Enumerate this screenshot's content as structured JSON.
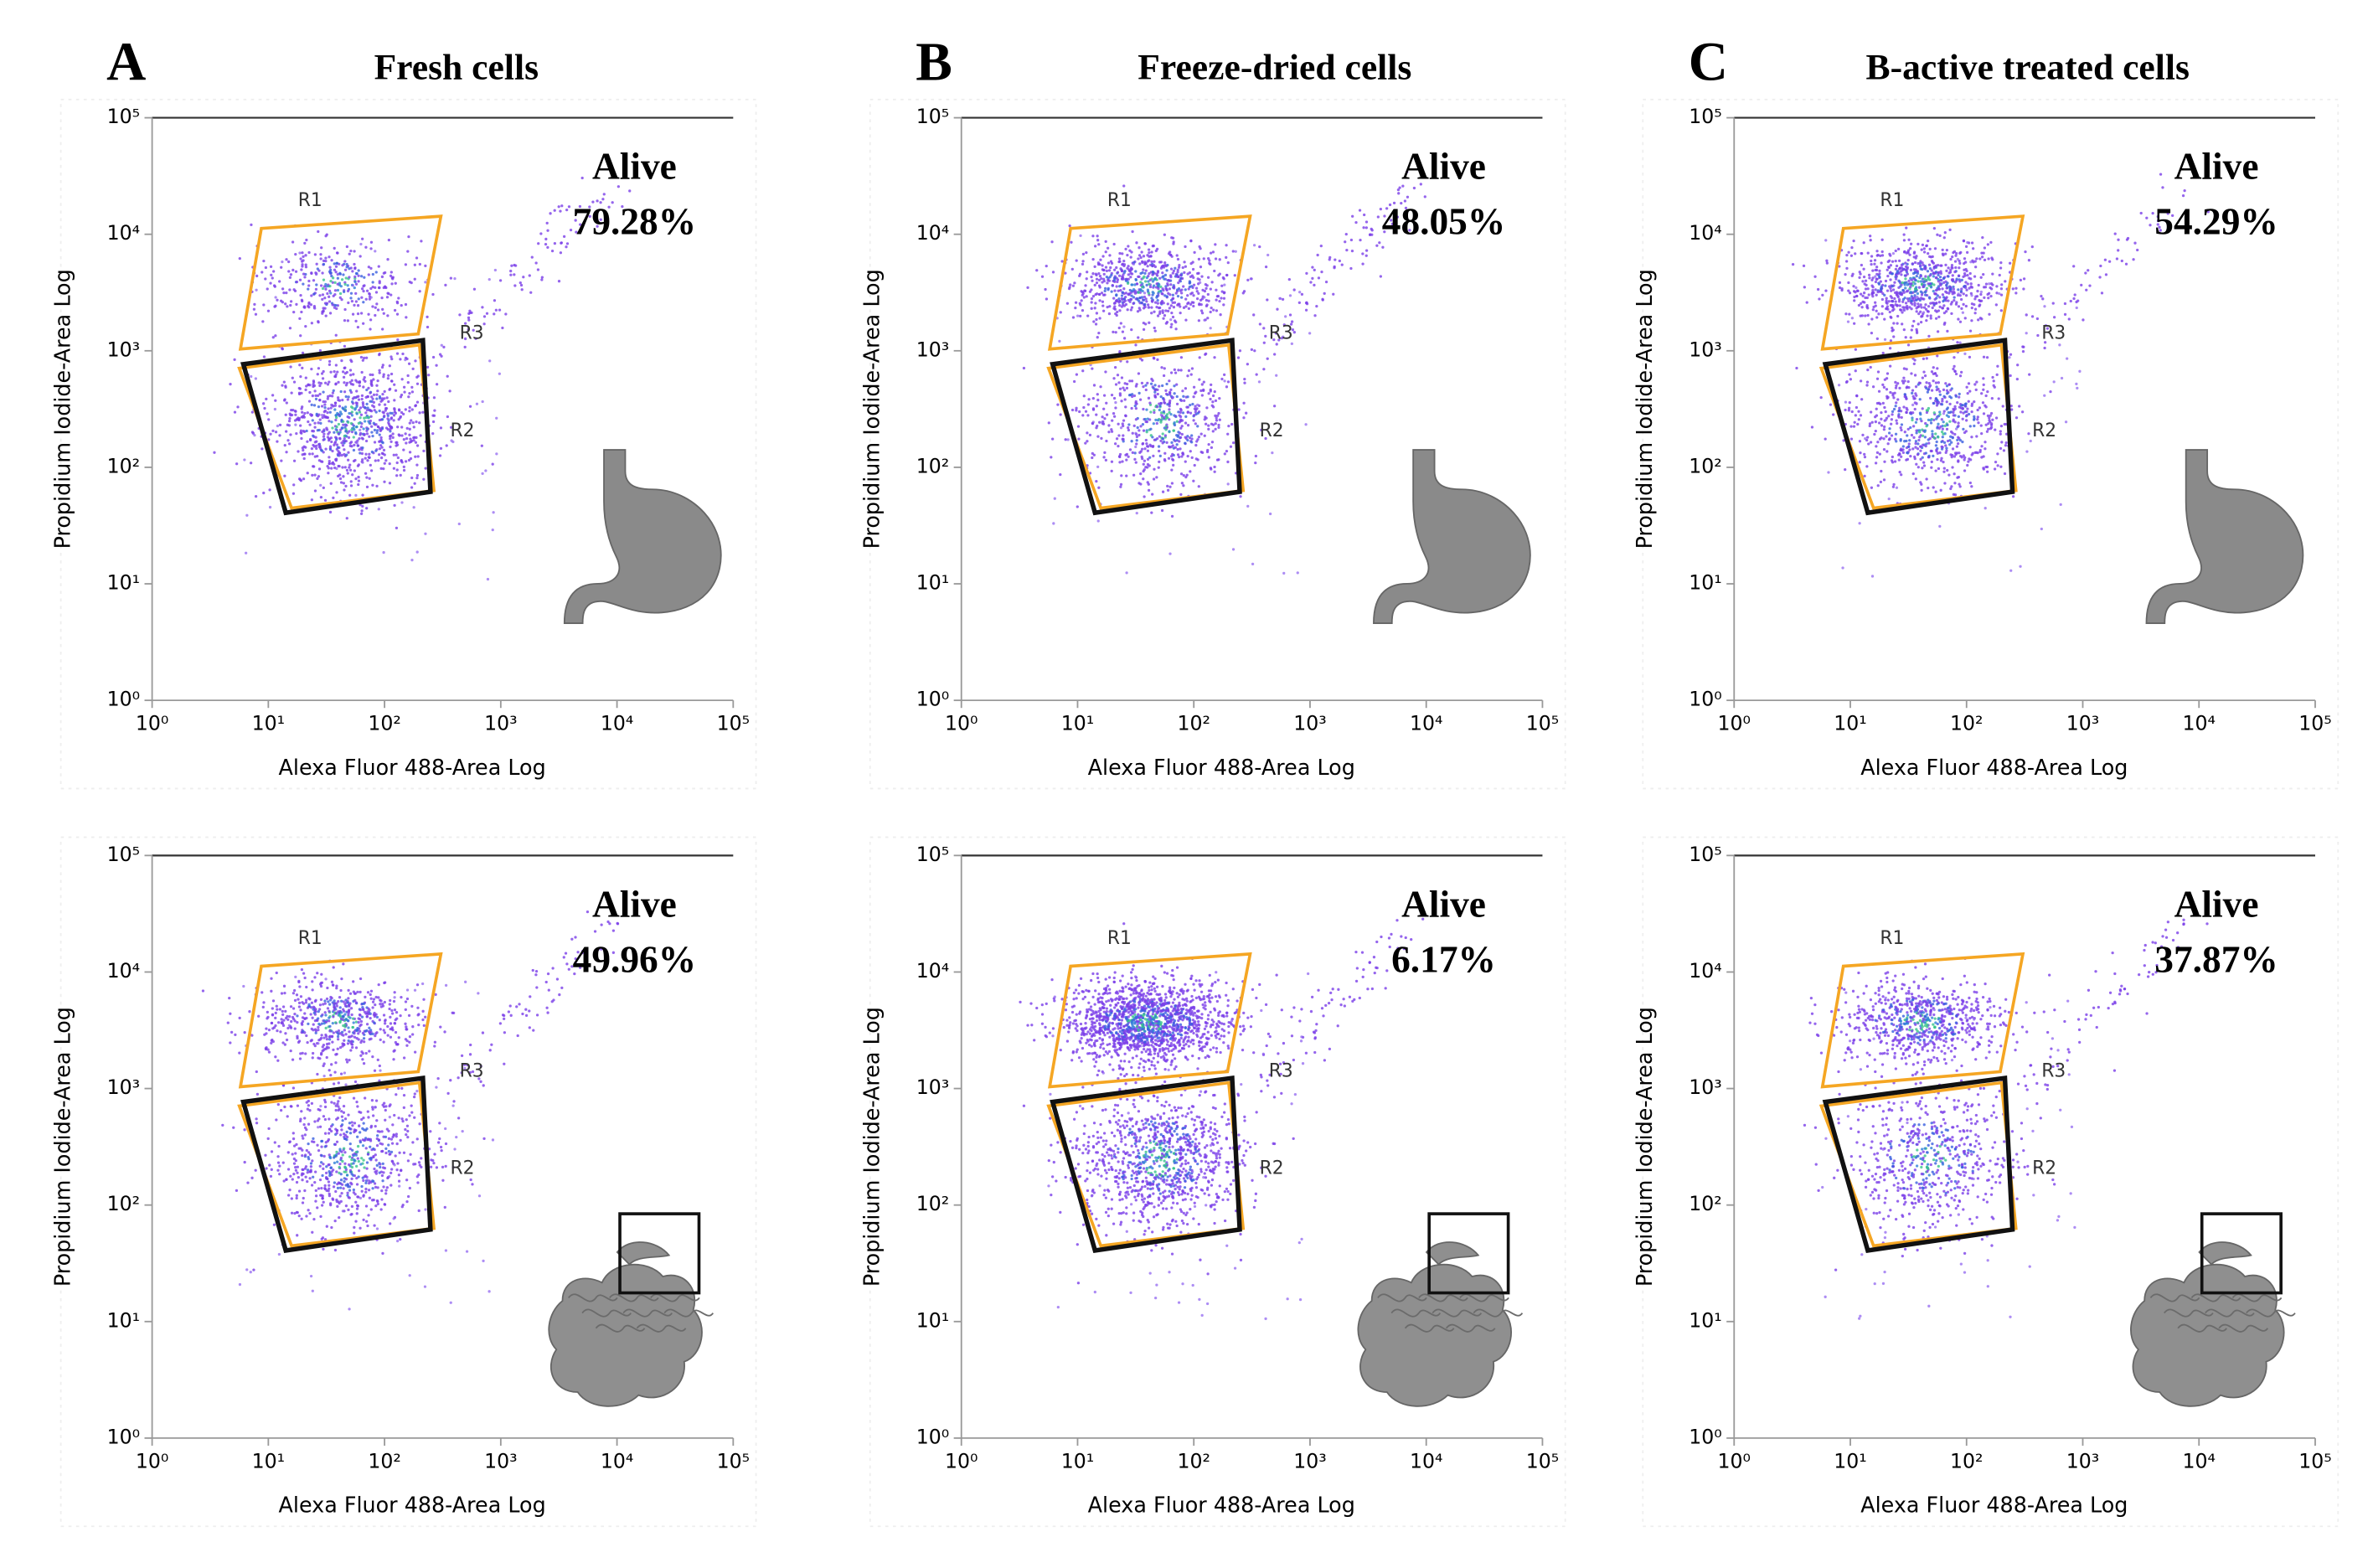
{
  "panels": [
    {
      "letter": "A",
      "title": "Fresh cells",
      "plots": [
        {
          "alive_label": "Alive",
          "alive_value": "79.28%"
        },
        {
          "alive_label": "Alive",
          "alive_value": "49.96%"
        }
      ]
    },
    {
      "letter": "B",
      "title": "Freeze-dried cells",
      "plots": [
        {
          "alive_label": "Alive",
          "alive_value": "48.05%"
        },
        {
          "alive_label": "Alive",
          "alive_value": "6.17%"
        }
      ]
    },
    {
      "letter": "C",
      "title": "B-active treated cells",
      "plots": [
        {
          "alive_label": "Alive",
          "alive_value": "54.29%"
        },
        {
          "alive_label": "Alive",
          "alive_value": "37.87%"
        }
      ]
    }
  ],
  "gates": [
    "R1",
    "R2",
    "R3"
  ],
  "x_axis_label": "Alexa Fluor 488-Area  Log",
  "y_axis_label": "Propidium Iodide-Area  Log",
  "ticks": [
    "10⁰",
    "10¹",
    "10²",
    "10³",
    "10⁴",
    "10⁵"
  ]
}
